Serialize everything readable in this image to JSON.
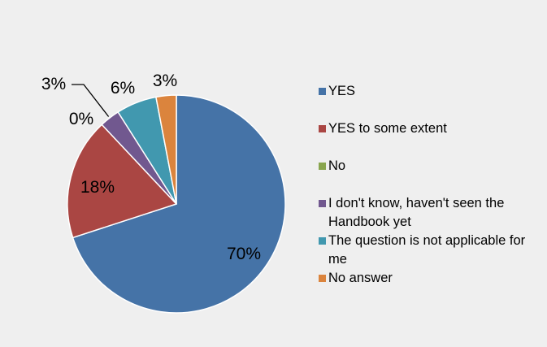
{
  "chart_data": {
    "type": "pie",
    "title": "",
    "start_angle_deg": 0,
    "direction": "clockwise",
    "legend_position": "right",
    "slices": [
      {
        "label": "YES",
        "value": 70,
        "display": "70%",
        "color": "#4573a7"
      },
      {
        "label": "YES to some extent",
        "value": 18,
        "display": "18%",
        "color": "#aa4643"
      },
      {
        "label": "No",
        "value": 0,
        "display": "0%",
        "color": "#89a54e"
      },
      {
        "label": "I don't know, haven't seen the Handbook yet",
        "value": 3,
        "display": "3%",
        "color": "#71588f"
      },
      {
        "label": "The question is not applicable for me",
        "value": 6,
        "display": "6%",
        "color": "#4198af"
      },
      {
        "label": "No answer",
        "value": 3,
        "display": "3%",
        "color": "#db843d"
      }
    ]
  }
}
